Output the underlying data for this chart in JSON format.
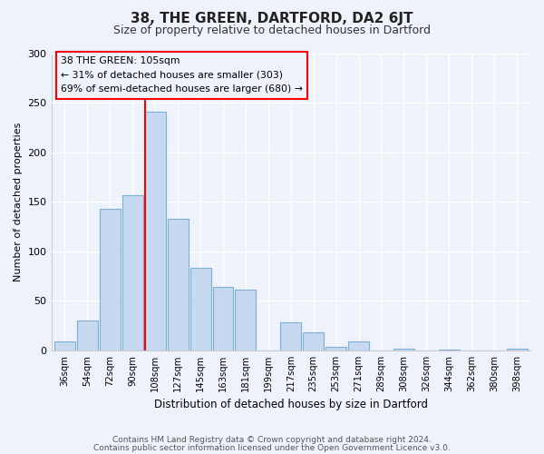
{
  "title": "38, THE GREEN, DARTFORD, DA2 6JT",
  "subtitle": "Size of property relative to detached houses in Dartford",
  "xlabel": "Distribution of detached houses by size in Dartford",
  "ylabel": "Number of detached properties",
  "bar_color": "#c6d9f1",
  "bar_edge_color": "#7bafd4",
  "background_color": "#eef2fa",
  "grid_color": "#ffffff",
  "categories": [
    "36sqm",
    "54sqm",
    "72sqm",
    "90sqm",
    "108sqm",
    "127sqm",
    "145sqm",
    "163sqm",
    "181sqm",
    "199sqm",
    "217sqm",
    "235sqm",
    "253sqm",
    "271sqm",
    "289sqm",
    "308sqm",
    "326sqm",
    "344sqm",
    "362sqm",
    "380sqm",
    "398sqm"
  ],
  "values": [
    9,
    30,
    143,
    157,
    241,
    133,
    83,
    64,
    61,
    0,
    28,
    18,
    4,
    9,
    0,
    2,
    0,
    1,
    0,
    0,
    2
  ],
  "ylim": [
    0,
    300
  ],
  "yticks": [
    0,
    50,
    100,
    150,
    200,
    250,
    300
  ],
  "annotation_label": "38 THE GREEN: 105sqm",
  "annotation_line1": "← 31% of detached houses are smaller (303)",
  "annotation_line2": "69% of semi-detached houses are larger (680) →",
  "vline_index": 4,
  "footer_line1": "Contains HM Land Registry data © Crown copyright and database right 2024.",
  "footer_line2": "Contains public sector information licensed under the Open Government Licence v3.0."
}
